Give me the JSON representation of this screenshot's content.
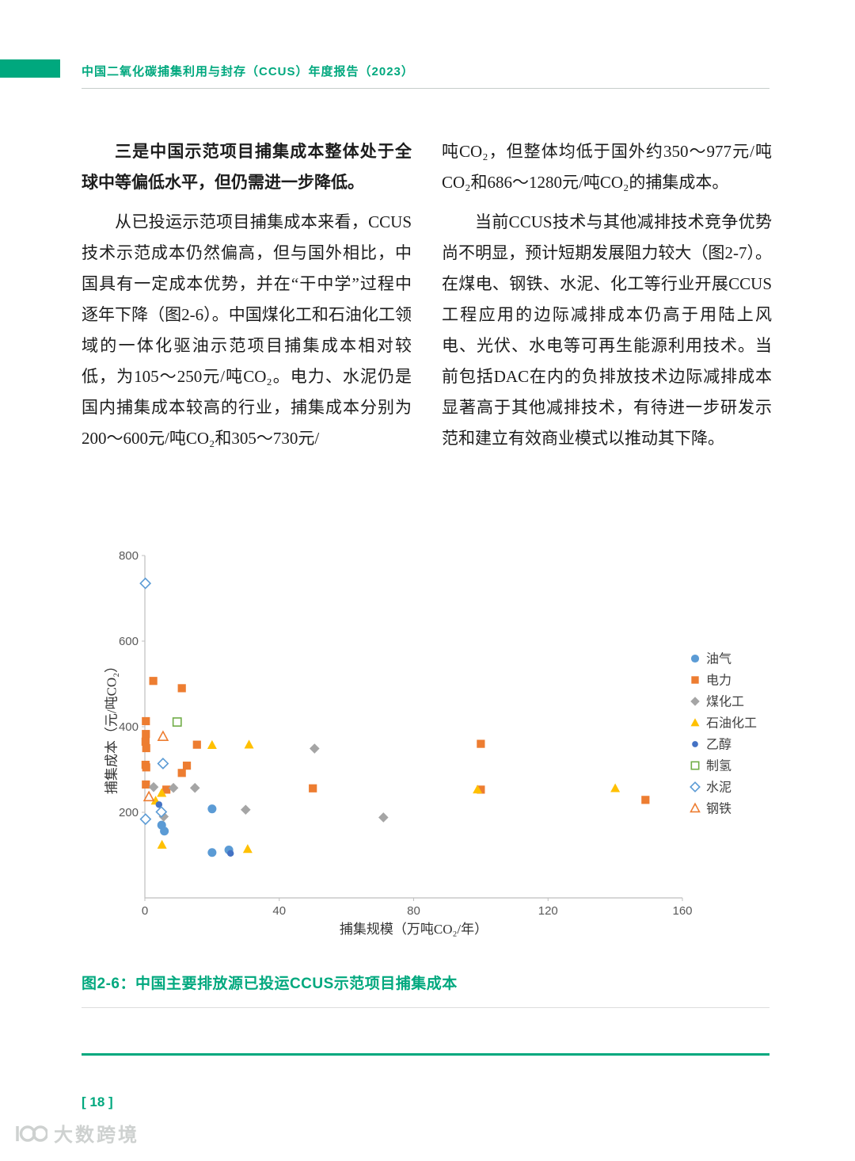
{
  "header": {
    "title": "中国二氧化碳捕集利用与封存（CCUS）年度报告（2023）"
  },
  "article": {
    "left": {
      "heading": "三是中国示范项目捕集成本整体处于全球中等偏低水平，但仍需进一步降低。",
      "para": "从已投运示范项目捕集成本来看，CCUS技术示范成本仍然偏高，但与国外相比，中国具有一定成本优势，并在“干中学”过程中逐年下降（图2-6）。中国煤化工和石油化工领域的一体化驱油示范项目捕集成本相对较低，为105～250元/吨CO₂。电力、水泥仍是国内捕集成本较高的行业，捕集成本分别为200～600元/吨CO₂和305～730元/"
    },
    "right": {
      "para1": "吨CO₂，但整体均低于国外约350～977元/吨CO₂和686～1280元/吨CO₂的捕集成本。",
      "para2": "当前CCUS技术与其他减排技术竞争优势尚不明显，预计短期发展阻力较大（图2-7）。在煤电、钢铁、水泥、化工等行业开展CCUS工程应用的边际减排成本仍高于用陆上风电、光伏、水电等可再生能源利用技术。当前包括DAC在内的负排放技术边际减排成本显著高于其他减排技术，有待进一步研发示范和建立有效商业模式以推动其下降。"
    }
  },
  "figure": {
    "caption": "图2-6：中国主要排放源已投运CCUS示范项目捕集成本"
  },
  "footer": {
    "page_number": "[ 18 ]",
    "watermark": "大数跨境"
  },
  "colors": {
    "accent_green": "#00a87e"
  },
  "chart_data": {
    "type": "scatter",
    "title": "",
    "xlabel": "捕集规模（万吨CO₂/年）",
    "ylabel": "捕集成本（元/吨CO₂）",
    "xlim": [
      0,
      160
    ],
    "ylim": [
      0,
      800
    ],
    "xticks": [
      0,
      40,
      80,
      120,
      160
    ],
    "yticks": [
      200,
      400,
      600,
      800
    ],
    "grid": false,
    "legend_position": "right",
    "series": [
      {
        "name": "油气",
        "marker": "circle",
        "filled": true,
        "color": "#5B9BD5",
        "points": [
          [
            20,
            208
          ],
          [
            5,
            170
          ],
          [
            5.8,
            156
          ],
          [
            20,
            106
          ],
          [
            25,
            112
          ]
        ]
      },
      {
        "name": "电力",
        "marker": "square",
        "filled": true,
        "color": "#ED7D31",
        "points": [
          [
            2.5,
            507
          ],
          [
            11,
            490
          ],
          [
            0.3,
            413
          ],
          [
            0.3,
            383
          ],
          [
            0.2,
            365
          ],
          [
            0.4,
            350
          ],
          [
            15.5,
            358
          ],
          [
            100,
            360
          ],
          [
            0.2,
            311
          ],
          [
            0.4,
            305
          ],
          [
            12.5,
            309
          ],
          [
            11,
            292
          ],
          [
            0.3,
            265
          ],
          [
            6.4,
            253
          ],
          [
            50,
            256
          ],
          [
            100,
            253
          ],
          [
            149,
            229
          ]
        ]
      },
      {
        "name": "煤化工",
        "marker": "diamond",
        "filled": true,
        "color": "#A5A5A5",
        "points": [
          [
            2.6,
            259
          ],
          [
            8.5,
            257
          ],
          [
            14.9,
            257
          ],
          [
            50.5,
            349
          ],
          [
            30,
            206
          ],
          [
            5.6,
            190
          ],
          [
            71,
            188
          ]
        ]
      },
      {
        "name": "石油化工",
        "marker": "triangle",
        "filled": true,
        "color": "#FFC000",
        "points": [
          [
            20,
            357
          ],
          [
            31,
            358
          ],
          [
            5,
            245
          ],
          [
            3.2,
            227
          ],
          [
            99,
            253
          ],
          [
            140,
            256
          ],
          [
            5.1,
            124
          ],
          [
            30.6,
            114
          ]
        ]
      },
      {
        "name": "乙醇",
        "marker": "circle-small",
        "filled": true,
        "color": "#4472C4",
        "points": [
          [
            4.2,
            218
          ],
          [
            25.5,
            104
          ]
        ]
      },
      {
        "name": "制氢",
        "marker": "square",
        "filled": false,
        "color": "#70AD47",
        "points": [
          [
            9.6,
            411
          ]
        ]
      },
      {
        "name": "水泥",
        "marker": "diamond",
        "filled": false,
        "color": "#5B9BD5",
        "points": [
          [
            0.15,
            735
          ],
          [
            5.4,
            314
          ],
          [
            4.9,
            201
          ],
          [
            0.2,
            184
          ]
        ]
      },
      {
        "name": "钢铁",
        "marker": "triangle",
        "filled": false,
        "color": "#ED7D31",
        "points": [
          [
            5.4,
            377
          ],
          [
            1.2,
            236
          ]
        ]
      }
    ]
  }
}
